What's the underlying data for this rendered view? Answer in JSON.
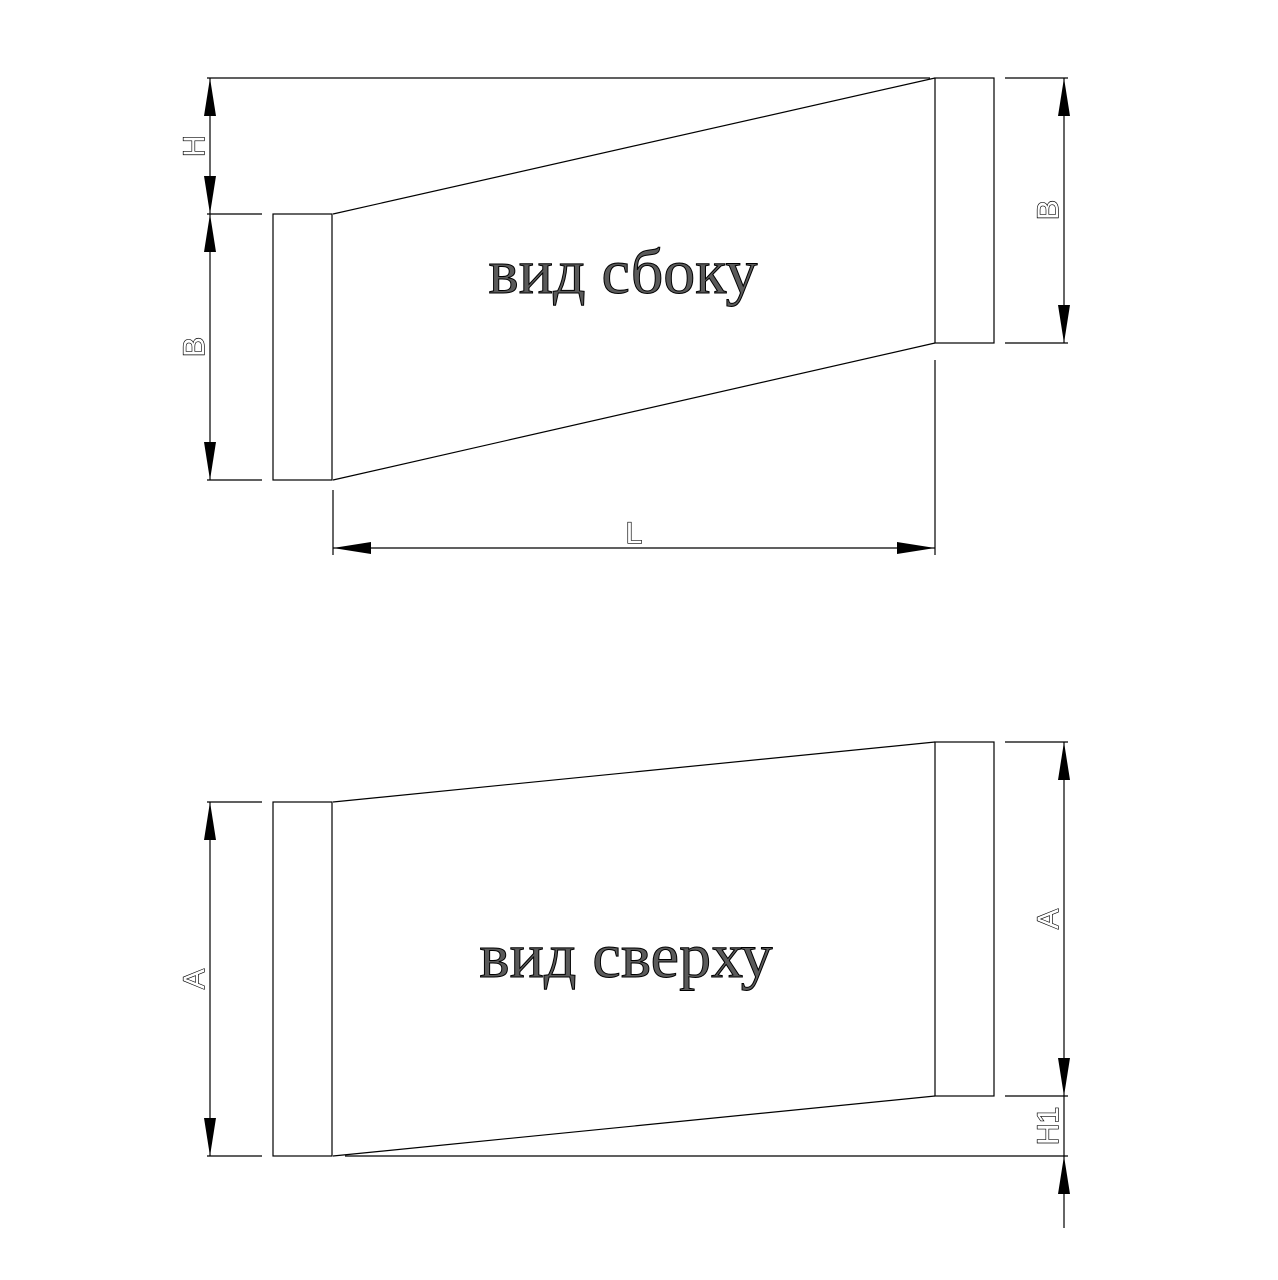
{
  "side_view": {
    "title": "вид сбоку",
    "dim_h": "H",
    "dim_b_left": "B",
    "dim_b_right": "B",
    "dim_l": "L"
  },
  "top_view": {
    "title": "вид сверху",
    "dim_a_left": "A",
    "dim_a_right": "A",
    "dim_h1": "H1"
  },
  "colors": {
    "line": "#000000",
    "title_fill": "#5a5a5a",
    "background": "#ffffff"
  }
}
